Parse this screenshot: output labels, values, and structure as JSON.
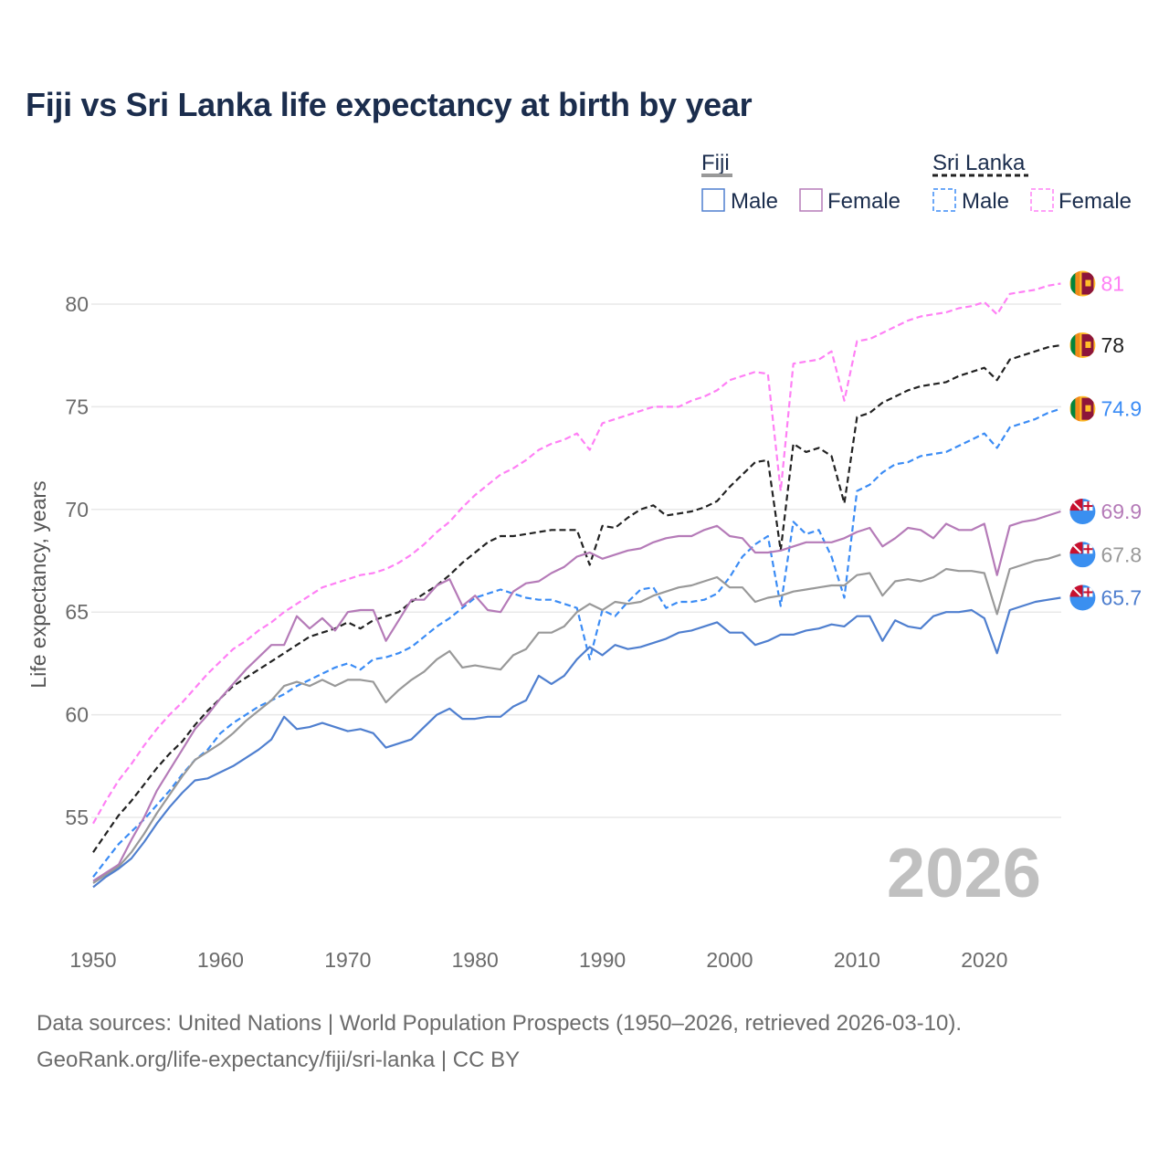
{
  "title": "Fiji vs Sri Lanka life expectancy at birth by year",
  "sources": {
    "line1": "Data sources: United Nations | World Population Prospects (1950–2026, retrieved 2026-03-10).",
    "line2": "GeoRank.org/life-expectancy/fiji/sri-lanka | CC BY"
  },
  "legend": {
    "groups": [
      {
        "label": "Fiji",
        "items": [
          "Male",
          "Female"
        ]
      },
      {
        "label": "Sri Lanka",
        "items": [
          "Male",
          "Female"
        ]
      }
    ]
  },
  "chart_data": {
    "type": "line",
    "title": "Fiji vs Sri Lanka life expectancy at birth by year",
    "xlabel": "",
    "ylabel": "Life expectancy, years",
    "xlim": [
      1950,
      2026
    ],
    "ylim": [
      51,
      82
    ],
    "xticks": [
      1950,
      1960,
      1970,
      1980,
      1990,
      2000,
      2010,
      2020
    ],
    "yticks": [
      55,
      60,
      65,
      70,
      75,
      80
    ],
    "grid": true,
    "legend_position": "top-right",
    "current_year_label": "2026",
    "x_start": 1950,
    "series": [
      {
        "name": "Sri Lanka Female",
        "country": "Sri Lanka",
        "flag": "sri-lanka-flag-icon",
        "color": "#ff80f5",
        "dashed": true,
        "end_label": "81",
        "values": [
          54.7,
          55.8,
          56.8,
          57.6,
          58.5,
          59.3,
          60.0,
          60.6,
          61.3,
          62.0,
          62.6,
          63.2,
          63.6,
          64.1,
          64.5,
          65.0,
          65.4,
          65.8,
          66.2,
          66.4,
          66.6,
          66.8,
          66.9,
          67.1,
          67.4,
          67.8,
          68.3,
          68.9,
          69.4,
          70.1,
          70.7,
          71.2,
          71.7,
          72.0,
          72.4,
          72.9,
          73.2,
          73.4,
          73.7,
          72.9,
          74.2,
          74.4,
          74.6,
          74.8,
          75.0,
          75.0,
          75.0,
          75.3,
          75.5,
          75.8,
          76.3,
          76.5,
          76.7,
          76.6,
          70.9,
          77.1,
          77.2,
          77.3,
          77.7,
          75.3,
          78.2,
          78.3,
          78.6,
          78.9,
          79.2,
          79.4,
          79.5,
          79.6,
          79.8,
          79.9,
          80.1,
          79.5,
          80.5,
          80.6,
          80.7,
          80.9,
          81.0
        ]
      },
      {
        "name": "Sri Lanka",
        "country": "Sri Lanka",
        "flag": "sri-lanka-flag-icon",
        "color": "#222222",
        "dashed": true,
        "end_label": "78",
        "values": [
          53.3,
          54.2,
          55.1,
          55.8,
          56.6,
          57.4,
          58.1,
          58.7,
          59.5,
          60.2,
          60.8,
          61.4,
          61.8,
          62.2,
          62.6,
          63.0,
          63.4,
          63.8,
          64.0,
          64.2,
          64.5,
          64.2,
          64.6,
          64.8,
          65.0,
          65.5,
          65.9,
          66.3,
          66.8,
          67.4,
          67.9,
          68.4,
          68.7,
          68.7,
          68.8,
          68.9,
          69.0,
          69.0,
          69.0,
          67.3,
          69.2,
          69.1,
          69.6,
          70.0,
          70.2,
          69.7,
          69.8,
          69.9,
          70.1,
          70.4,
          71.1,
          71.7,
          72.3,
          72.4,
          68.0,
          73.2,
          72.8,
          73.0,
          72.6,
          70.3,
          74.5,
          74.7,
          75.2,
          75.5,
          75.8,
          76.0,
          76.1,
          76.2,
          76.5,
          76.7,
          76.9,
          76.3,
          77.3,
          77.5,
          77.7,
          77.9,
          78.0
        ]
      },
      {
        "name": "Sri Lanka Male",
        "country": "Sri Lanka",
        "flag": "sri-lanka-flag-icon",
        "color": "#3b8cf5",
        "dashed": true,
        "end_label": "74.9",
        "values": [
          52.1,
          52.9,
          53.7,
          54.3,
          54.9,
          55.6,
          56.3,
          57.1,
          57.8,
          58.3,
          59.1,
          59.6,
          60.0,
          60.4,
          60.7,
          61.0,
          61.4,
          61.7,
          62.0,
          62.3,
          62.5,
          62.2,
          62.7,
          62.8,
          63.0,
          63.3,
          63.8,
          64.3,
          64.7,
          65.2,
          65.7,
          65.9,
          66.1,
          65.9,
          65.7,
          65.6,
          65.6,
          65.4,
          65.2,
          62.7,
          65.1,
          64.8,
          65.5,
          66.1,
          66.2,
          65.2,
          65.5,
          65.5,
          65.6,
          65.9,
          66.7,
          67.7,
          68.3,
          68.7,
          65.3,
          69.4,
          68.8,
          69.0,
          67.7,
          65.7,
          70.9,
          71.2,
          71.8,
          72.2,
          72.3,
          72.6,
          72.7,
          72.8,
          73.1,
          73.4,
          73.7,
          73.0,
          74.0,
          74.2,
          74.4,
          74.7,
          74.9
        ]
      },
      {
        "name": "Fiji Female",
        "country": "Fiji",
        "flag": "fiji-flag-icon",
        "color": "#b57bb8",
        "dashed": false,
        "end_label": "69.9",
        "values": [
          51.9,
          52.3,
          52.7,
          53.9,
          55.0,
          56.3,
          57.3,
          58.3,
          59.3,
          60.0,
          60.8,
          61.5,
          62.2,
          62.8,
          63.4,
          63.4,
          64.8,
          64.2,
          64.7,
          64.1,
          65.0,
          65.1,
          65.1,
          63.6,
          64.6,
          65.6,
          65.6,
          66.3,
          66.6,
          65.3,
          65.8,
          65.1,
          65.0,
          66.0,
          66.4,
          66.5,
          66.9,
          67.2,
          67.7,
          67.9,
          67.6,
          67.8,
          68.0,
          68.1,
          68.4,
          68.6,
          68.7,
          68.7,
          69.0,
          69.2,
          68.7,
          68.6,
          67.9,
          67.9,
          68.0,
          68.2,
          68.4,
          68.4,
          68.4,
          68.6,
          68.9,
          69.1,
          68.2,
          68.6,
          69.1,
          69.0,
          68.6,
          69.3,
          69.0,
          69.0,
          69.3,
          66.8,
          69.2,
          69.4,
          69.5,
          69.7,
          69.9
        ]
      },
      {
        "name": "Fiji",
        "country": "Fiji",
        "flag": "fiji-flag-icon",
        "color": "#999999",
        "dashed": false,
        "end_label": "67.8",
        "values": [
          51.8,
          52.2,
          52.6,
          53.3,
          54.2,
          55.2,
          56.1,
          57.0,
          57.8,
          58.2,
          58.6,
          59.1,
          59.7,
          60.2,
          60.7,
          61.4,
          61.6,
          61.4,
          61.7,
          61.4,
          61.7,
          61.7,
          61.6,
          60.6,
          61.2,
          61.7,
          62.1,
          62.7,
          63.1,
          62.3,
          62.4,
          62.3,
          62.2,
          62.9,
          63.2,
          64.0,
          64.0,
          64.3,
          65.0,
          65.4,
          65.1,
          65.5,
          65.4,
          65.5,
          65.8,
          66.0,
          66.2,
          66.3,
          66.5,
          66.7,
          66.2,
          66.2,
          65.5,
          65.7,
          65.8,
          66.0,
          66.1,
          66.2,
          66.3,
          66.3,
          66.8,
          66.9,
          65.8,
          66.5,
          66.6,
          66.5,
          66.7,
          67.1,
          67.0,
          67.0,
          66.9,
          64.9,
          67.1,
          67.3,
          67.5,
          67.6,
          67.8
        ]
      },
      {
        "name": "Fiji Male",
        "country": "Fiji",
        "flag": "fiji-flag-icon",
        "color": "#4f7fcf",
        "dashed": false,
        "end_label": "65.7",
        "values": [
          51.6,
          52.1,
          52.5,
          53.0,
          53.8,
          54.7,
          55.5,
          56.2,
          56.8,
          56.9,
          57.2,
          57.5,
          57.9,
          58.3,
          58.8,
          59.9,
          59.3,
          59.4,
          59.6,
          59.4,
          59.2,
          59.3,
          59.1,
          58.4,
          58.6,
          58.8,
          59.4,
          60.0,
          60.3,
          59.8,
          59.8,
          59.9,
          59.9,
          60.4,
          60.7,
          61.9,
          61.5,
          61.9,
          62.7,
          63.3,
          62.9,
          63.4,
          63.2,
          63.3,
          63.5,
          63.7,
          64.0,
          64.1,
          64.3,
          64.5,
          64.0,
          64.0,
          63.4,
          63.6,
          63.9,
          63.9,
          64.1,
          64.2,
          64.4,
          64.3,
          64.8,
          64.8,
          63.6,
          64.6,
          64.3,
          64.2,
          64.8,
          65.0,
          65.0,
          65.1,
          64.7,
          63.0,
          65.1,
          65.3,
          65.5,
          65.6,
          65.7
        ]
      }
    ]
  }
}
